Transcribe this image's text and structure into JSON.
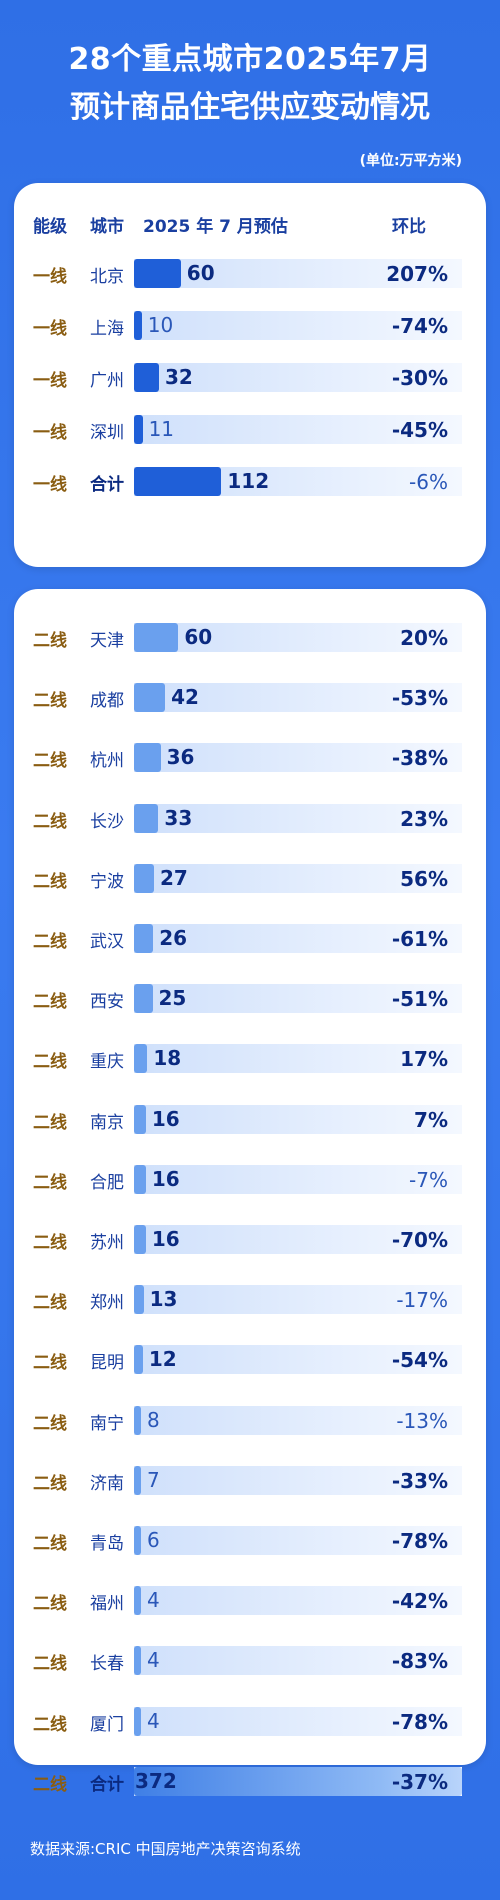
{
  "title_line1": "28个重点城市2025年7月",
  "title_line2": "预计商品住宅供应变动情况",
  "unit": "(单位:万平方米)",
  "header": {
    "tier": "能级",
    "city": "城市",
    "forecast": "2025 年 7 月预估",
    "change": "环比"
  },
  "source": "数据来源:CRIC 中国房地产决策咨询系统",
  "chart_data": {
    "type": "bar",
    "title": "28个重点城市2025年7月预计商品住宅供应变动情况",
    "unit": "万平方米",
    "series": [
      {
        "name": "2025 年 7 月预估"
      },
      {
        "name": "环比"
      }
    ],
    "groups": [
      {
        "tier": "一线",
        "rows": [
          {
            "city": "北京",
            "value": 60,
            "change": "207%"
          },
          {
            "city": "上海",
            "value": 10,
            "change": "-74%"
          },
          {
            "city": "广州",
            "value": 32,
            "change": "-30%"
          },
          {
            "city": "深圳",
            "value": 11,
            "change": "-45%"
          },
          {
            "city": "合计",
            "value": 112,
            "change": "-6%",
            "total": true
          }
        ]
      },
      {
        "tier": "二线",
        "rows": [
          {
            "city": "天津",
            "value": 60,
            "change": "20%"
          },
          {
            "city": "成都",
            "value": 42,
            "change": "-53%"
          },
          {
            "city": "杭州",
            "value": 36,
            "change": "-38%"
          },
          {
            "city": "长沙",
            "value": 33,
            "change": "23%"
          },
          {
            "city": "宁波",
            "value": 27,
            "change": "56%"
          },
          {
            "city": "武汉",
            "value": 26,
            "change": "-61%"
          },
          {
            "city": "西安",
            "value": 25,
            "change": "-51%"
          },
          {
            "city": "重庆",
            "value": 18,
            "change": "17%"
          },
          {
            "city": "南京",
            "value": 16,
            "change": "7%"
          },
          {
            "city": "合肥",
            "value": 16,
            "change": "-7%"
          },
          {
            "city": "苏州",
            "value": 16,
            "change": "-70%"
          },
          {
            "city": "郑州",
            "value": 13,
            "change": "-17%"
          },
          {
            "city": "昆明",
            "value": 12,
            "change": "-54%"
          },
          {
            "city": "南宁",
            "value": 8,
            "change": "-13%"
          },
          {
            "city": "济南",
            "value": 7,
            "change": "-33%"
          },
          {
            "city": "青岛",
            "value": 6,
            "change": "-78%"
          },
          {
            "city": "福州",
            "value": 4,
            "change": "-42%"
          },
          {
            "city": "长春",
            "value": 4,
            "change": "-83%"
          },
          {
            "city": "厦门",
            "value": 4,
            "change": "-78%"
          },
          {
            "city": "合计",
            "value": 372,
            "change": "-37%",
            "total": true
          }
        ]
      }
    ]
  }
}
